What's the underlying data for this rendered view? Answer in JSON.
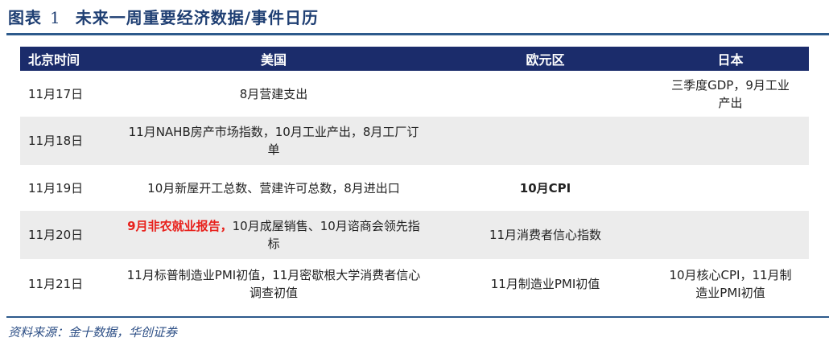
{
  "title": {
    "label": "图表",
    "number": "1",
    "text": "未来一周重要经济数据/事件日历"
  },
  "table": {
    "headers": [
      "北京时间",
      "美国",
      "欧元区",
      "日本"
    ],
    "rows": [
      {
        "date": "11月17日",
        "us_highlight": "",
        "us": "8月营建支出",
        "eu": "",
        "eu_bold": false,
        "jp": "三季度GDP，9月工业产出"
      },
      {
        "date": "11月18日",
        "us_highlight": "",
        "us": "11月NAHB房产市场指数，10月工业产出，8月工厂订单",
        "eu": "",
        "eu_bold": false,
        "jp": ""
      },
      {
        "date": "11月19日",
        "us_highlight": "",
        "us": "10月新屋开工总数、营建许可总数，8月进出口",
        "eu": "10月CPI",
        "eu_bold": true,
        "jp": ""
      },
      {
        "date": "11月20日",
        "us_highlight": "9月非农就业报告，",
        "us": "10月成屋销售、10月谘商会领先指标",
        "eu": "11月消费者信心指数",
        "eu_bold": false,
        "jp": ""
      },
      {
        "date": "11月21日",
        "us_highlight": "",
        "us": "11月标普制造业PMI初值，11月密歇根大学消费者信心调查初值",
        "eu": "11月制造业PMI初值",
        "eu_bold": false,
        "jp": "10月核心CPI，11月制造业PMI初值"
      }
    ]
  },
  "source": "资料来源：金十数据，华创证券",
  "colors": {
    "header_bg": "#1b2c6b",
    "highlight": "#e8211c",
    "rule": "#2d5a8c",
    "stripe": "#ececec"
  }
}
